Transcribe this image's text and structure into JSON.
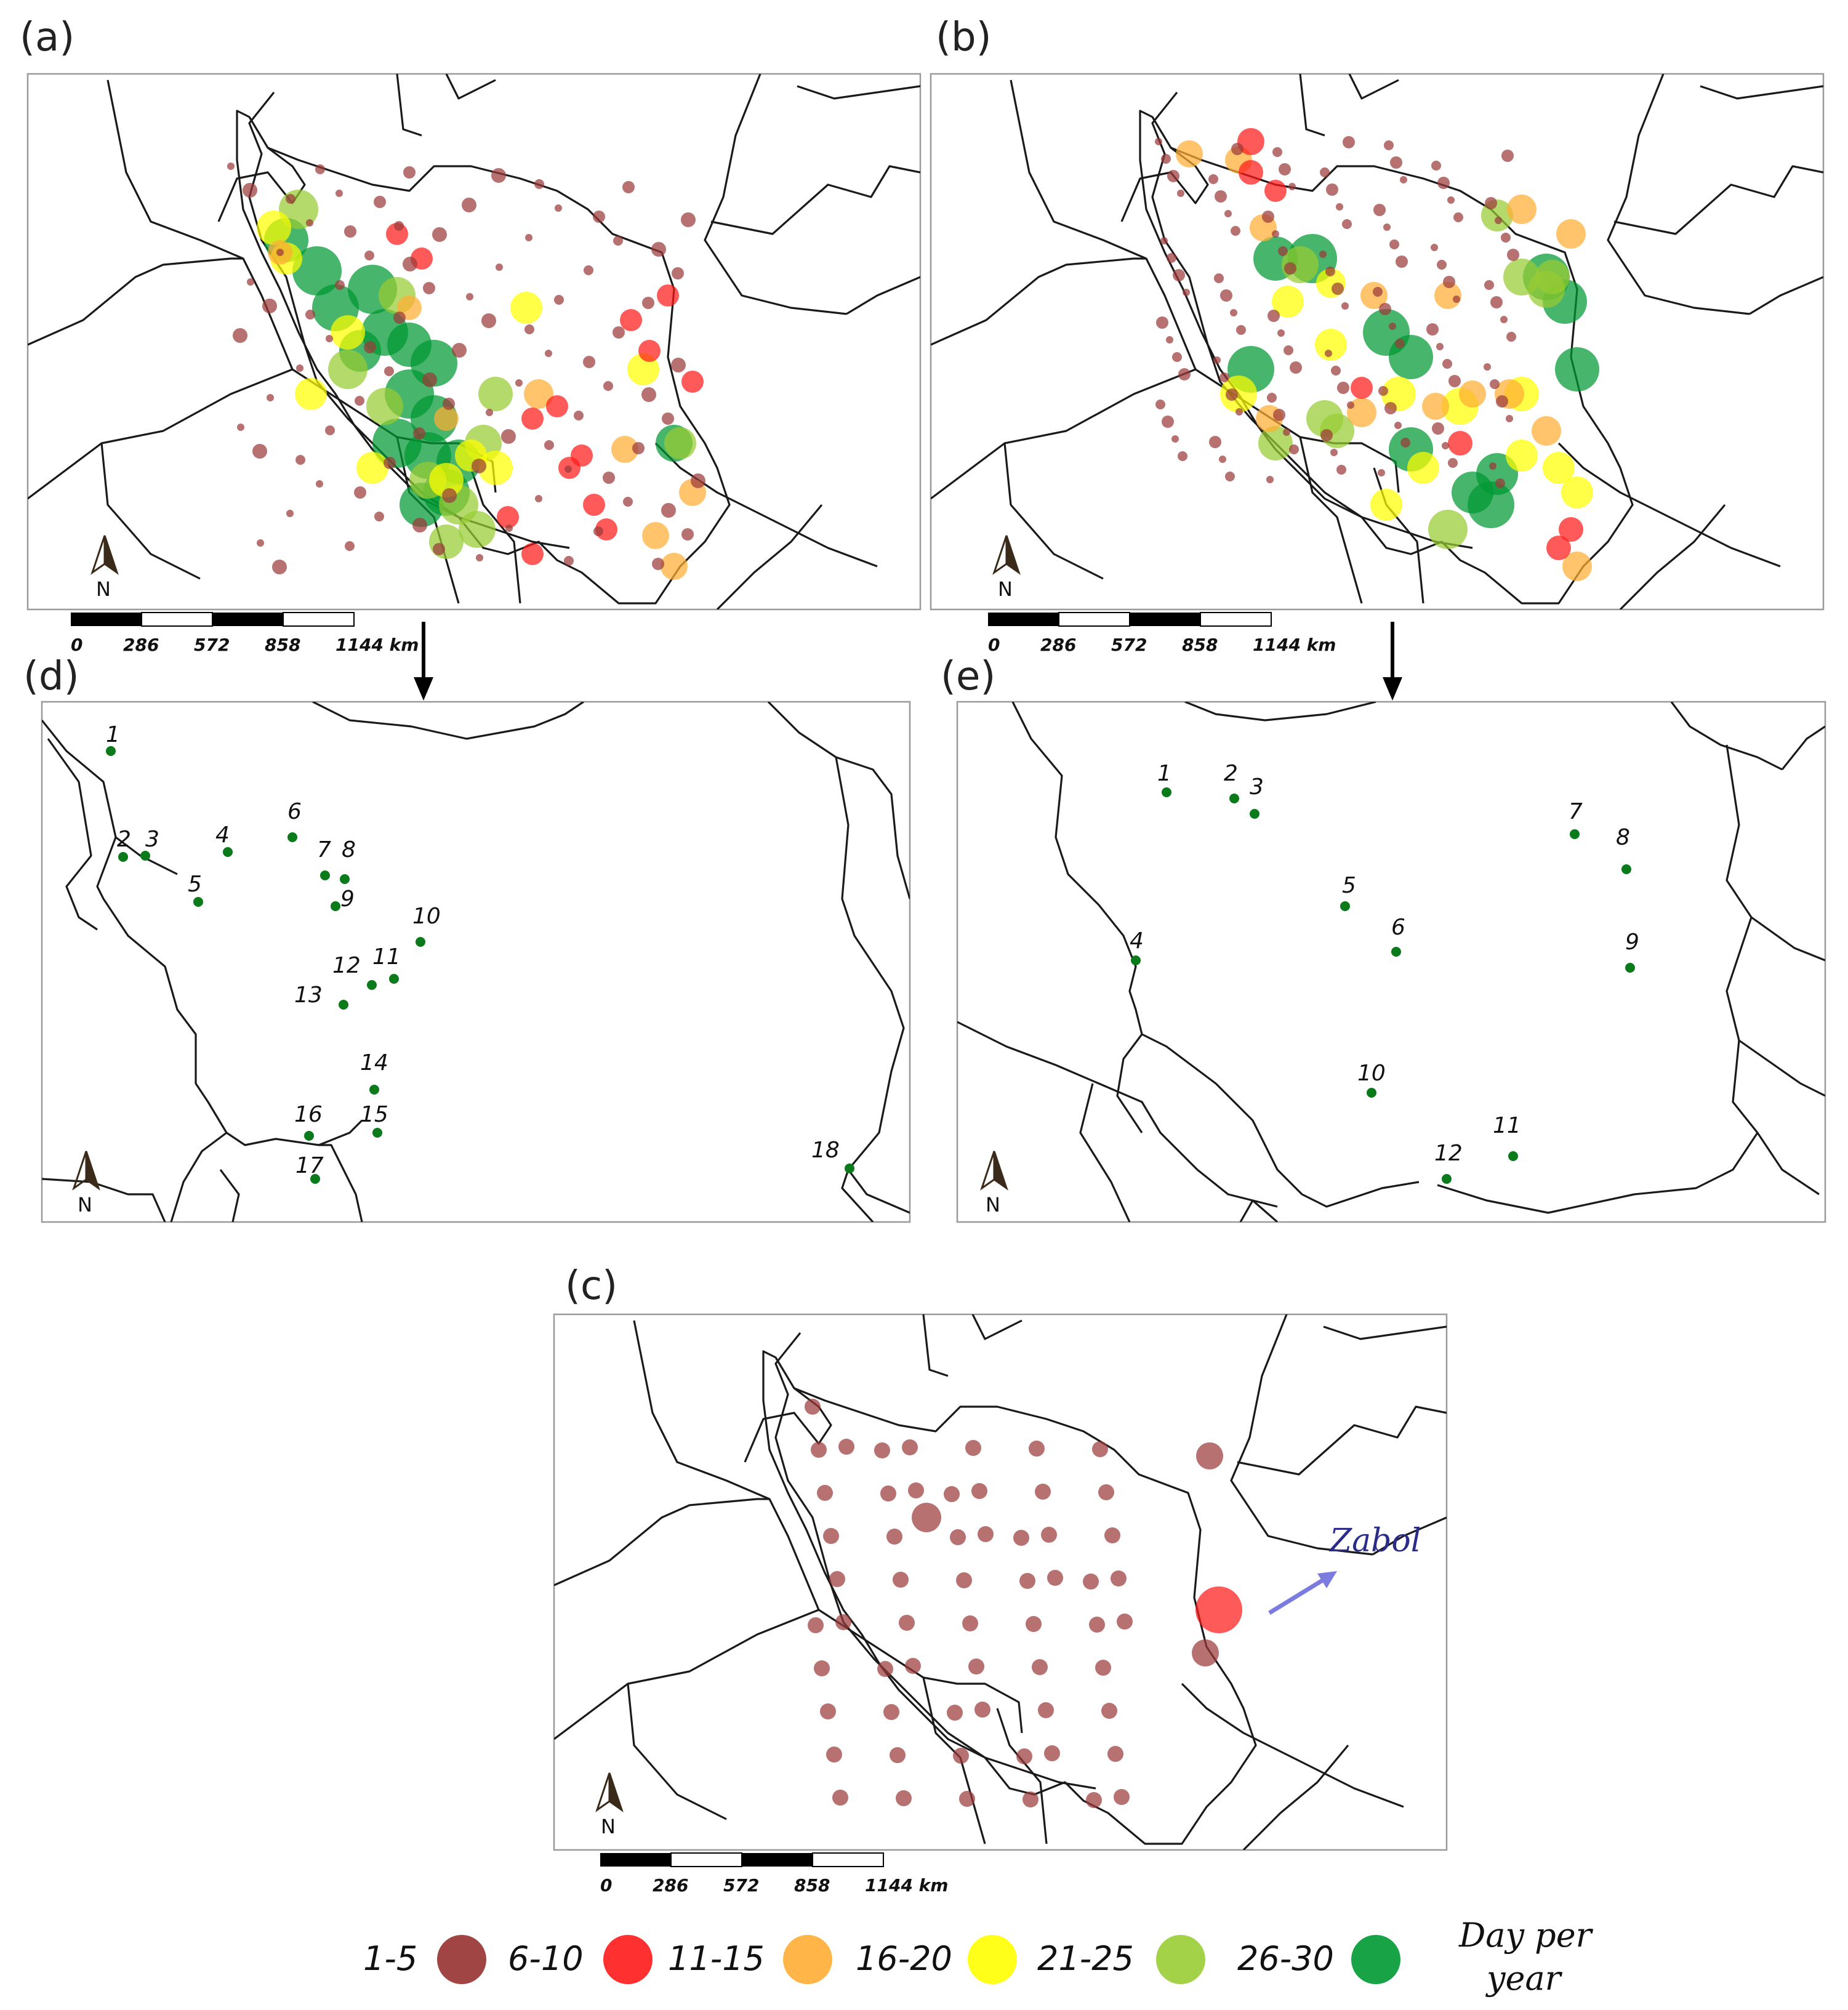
{
  "legend": {
    "classes": [
      {
        "label": "1-5",
        "color": "#9b3a3a"
      },
      {
        "label": "6-10",
        "color": "#ff1a1a"
      },
      {
        "label": "11-15",
        "color": "#ffad33"
      },
      {
        "label": "16-20",
        "color": "#ffff00"
      },
      {
        "label": "21-25",
        "color": "#99cc33"
      },
      {
        "label": "26-30",
        "color": "#009933"
      }
    ],
    "title_line1": "Day per",
    "title_line2": "year"
  },
  "panels": {
    "a": {
      "label": "(a)"
    },
    "b": {
      "label": "(b)"
    },
    "c": {
      "label": "(c)",
      "annotation": "Zabol"
    },
    "d": {
      "label": "(d)",
      "sites": [
        "1",
        "2",
        "3",
        "4",
        "5",
        "6",
        "7",
        "8",
        "9",
        "10",
        "11",
        "12",
        "13",
        "14",
        "15",
        "16",
        "17",
        "18"
      ]
    },
    "e": {
      "label": "(e)",
      "sites": [
        "1",
        "2",
        "3",
        "4",
        "5",
        "6",
        "7",
        "8",
        "9",
        "10",
        "11",
        "12"
      ]
    }
  },
  "north_label": "N",
  "scale_bar": {
    "ticks": [
      "0",
      "286",
      "572",
      "858",
      "1144 km"
    ]
  },
  "colors": {
    "border": "#1a1a1a",
    "site_marker": "#0a7a1a",
    "arrow": "#7b7be0"
  }
}
